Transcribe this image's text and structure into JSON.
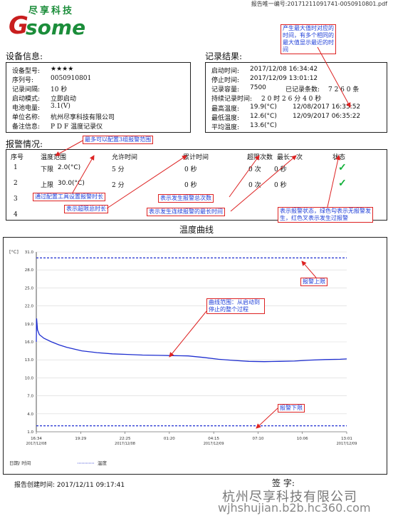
{
  "header": {
    "report_number": "报告唯一编号:20171211091741-0050910801.pdf"
  },
  "logo": {
    "brand_cn": "尽享科技",
    "letter_g": "G",
    "letters_rest": "some",
    "brand_color": "#1b8d3a",
    "letter_g_color": "#c81e1e"
  },
  "device_info": {
    "title": "设备信息:",
    "rows": [
      {
        "label": "设备型号:",
        "value": "★★★★"
      },
      {
        "label": "序列号:",
        "value": "0050910801"
      },
      {
        "label": "记录间隔:",
        "value": "10 秒"
      },
      {
        "label": "启动模式:",
        "value": "立即启动"
      },
      {
        "label": "电池电量:",
        "value": "3.1(V)"
      },
      {
        "label": "单位名称:",
        "value": "杭州尽享科技有限公司"
      },
      {
        "label": "备注信息:",
        "value": "P D F 温度记录仪"
      }
    ]
  },
  "record_result": {
    "title": "记录结果:",
    "start": {
      "label": "启动时间:",
      "value": "2017/12/08 16:34:42"
    },
    "stop": {
      "label": "停止时间:",
      "value": "2017/12/09 13:01:12"
    },
    "capacity": {
      "label": "记录容量:",
      "value": "7500",
      "count_label": "已记录条数:",
      "count_value": "7 2 6 0 条"
    },
    "duration": {
      "label": "持续记录时间:",
      "value": "2 0 时  2 6 分  4 0 秒"
    },
    "max": {
      "label": "最高温度:",
      "value": "19.9(°C)",
      "time": "12/08/2017  16:35:52"
    },
    "min": {
      "label": "最低温度:",
      "value": "12.6(°C)",
      "time": "12/09/2017  06:35:22"
    },
    "avg": {
      "label": "平均温度:",
      "value": "13.6(°C)"
    }
  },
  "alarm": {
    "title": "报警情况:",
    "headers": [
      "序号",
      "温度范围",
      "允许时间",
      "累计时间",
      "超限次数",
      "最长一次",
      "状态"
    ],
    "rows": [
      {
        "no": "1",
        "range_label": "下限",
        "range_value": "2.0(°C)",
        "allowed": "5 分",
        "total": "0 秒",
        "count": "0 次",
        "longest": "0 秒",
        "status": "✓"
      },
      {
        "no": "2",
        "range_label": "上限",
        "range_value": "30.0(°C)",
        "allowed": "2 分",
        "total": "0 秒",
        "count": "0 次",
        "longest": "0 秒",
        "status": "✓"
      },
      {
        "no": "3"
      },
      {
        "no": "4"
      }
    ]
  },
  "annotations": {
    "max_note": "产生最大值时对应的时间，有多个相同的最大值显示最近的时间",
    "range_note": "最多可以配置3组报警范围",
    "config_note": "通过配置工具设置报警时长",
    "exceed_total_note": "表示超限总时长",
    "count_note": "表示发生报警总次数",
    "longest_note": "表示发生连续报警的最长时间",
    "status_note": "表示报警状态，绿色勾表示无报警发生，红色叉表示发生过报警",
    "upper_note": "报警上限",
    "curve_note": "曲线范围：从启动到停止的整个过程",
    "lower_note": "报警下限"
  },
  "chart_title": "温度曲线",
  "chart_data": {
    "type": "line",
    "title": "温度曲线",
    "ylabel": "[°C]",
    "xlabel": "日期/ 时间",
    "ylim": [
      1.0,
      31.0
    ],
    "y_ticks": [
      "31.0",
      "28.0",
      "25.0",
      "22.0",
      "19.0",
      "16.0",
      "13.0",
      "10.0",
      "7.0",
      "4.0",
      "1.0"
    ],
    "x_ticks": [
      {
        "time": "16:34",
        "date": "2017/12/08"
      },
      {
        "time": "19:29",
        "date": ""
      },
      {
        "time": "22:25",
        "date": "2017/12/08"
      },
      {
        "time": "01:20",
        "date": ""
      },
      {
        "time": "04:15",
        "date": "2017/12/09"
      },
      {
        "time": "07:10",
        "date": ""
      },
      {
        "time": "10:06",
        "date": ""
      },
      {
        "time": "13:01",
        "date": "2017/12/09"
      }
    ],
    "upper_limit": 30.0,
    "lower_limit": 2.0,
    "series": [
      {
        "name": "温度",
        "color": "#1f2fd0",
        "x_hours": [
          0,
          0.02,
          0.08,
          0.2,
          0.5,
          1.0,
          1.5,
          2.0,
          2.5,
          3.0,
          4.0,
          5.0,
          6.0,
          7.0,
          8.0,
          9.0,
          10.0,
          11.0,
          12.0,
          13.0,
          14.0,
          15.0,
          16.0,
          17.0,
          18.0,
          19.0,
          20.0,
          20.44
        ],
        "values": [
          16.0,
          19.9,
          18.0,
          17.2,
          16.6,
          16.0,
          15.5,
          15.1,
          14.8,
          14.5,
          14.2,
          14.0,
          13.9,
          13.8,
          13.75,
          13.7,
          13.65,
          13.4,
          13.1,
          12.9,
          12.75,
          12.7,
          12.75,
          12.8,
          12.95,
          13.05,
          13.1,
          13.15
        ]
      }
    ],
    "legend": "温度"
  },
  "footer": {
    "created": "报告创建时间: 2017/12/11 09:17:41",
    "signature": "签  字:",
    "company": "杭州尽享科技有限公司",
    "site": "wjhshujian.b2b.hc360.com"
  }
}
